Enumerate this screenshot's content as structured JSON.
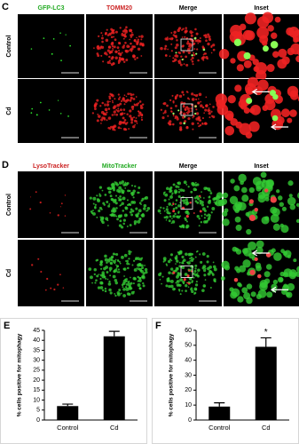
{
  "panels": [
    {
      "label": "C",
      "headers": [
        "GFP-LC3",
        "TOMM20",
        "Merge",
        "Inset"
      ],
      "rows": [
        "Control",
        "Cd"
      ]
    },
    {
      "label": "D",
      "headers": [
        "LysoTracker",
        "MitoTracker",
        "Merge",
        "Inset"
      ],
      "rows": [
        "Control",
        "Cd"
      ]
    }
  ],
  "chart_data": [
    {
      "type": "bar",
      "label": "E",
      "ylabel": "% cells positive for mitophagy",
      "categories": [
        "Control",
        "Cd"
      ],
      "values": [
        7,
        42
      ],
      "errors": [
        1,
        2.5
      ],
      "color": "#000000",
      "ylim": [
        0,
        45
      ],
      "yticks": [
        0,
        5,
        10,
        15,
        20,
        25,
        30,
        35,
        40,
        45
      ]
    },
    {
      "type": "bar",
      "label": "F",
      "ylabel": "% cells positive for mitophagy",
      "categories": [
        "Control",
        "Cd"
      ],
      "values": [
        9,
        49
      ],
      "errors": [
        2.5,
        6
      ],
      "color": "#000000",
      "ylim": [
        0,
        60
      ],
      "yticks": [
        0,
        10,
        20,
        30,
        40,
        50,
        60
      ],
      "annotation": "*"
    }
  ]
}
